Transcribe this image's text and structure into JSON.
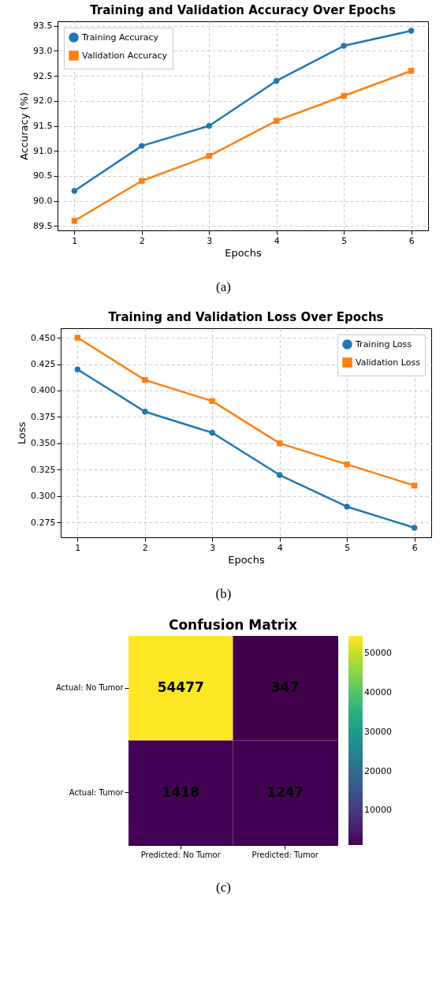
{
  "chart_data": [
    {
      "type": "line",
      "title": "Training and Validation Accuracy Over Epochs",
      "xlabel": "Epochs",
      "ylabel": "Accuracy (%)",
      "x": [
        1,
        2,
        3,
        4,
        5,
        6
      ],
      "series": [
        {
          "name": "Training Accuracy",
          "color": "#1f77b4",
          "marker": "circle",
          "values": [
            90.2,
            91.1,
            91.5,
            92.4,
            93.1,
            93.4
          ]
        },
        {
          "name": "Validation Accuracy",
          "color": "#ff7f0e",
          "marker": "square",
          "values": [
            89.6,
            90.4,
            90.9,
            91.6,
            92.1,
            92.6
          ]
        }
      ],
      "xlim": [
        0.75,
        6.25
      ],
      "xticks": [
        1,
        2,
        3,
        4,
        5,
        6
      ],
      "ylim": [
        89.41,
        93.59
      ],
      "yticks": [
        89.5,
        {
          "value": 90,
          "label": "90.0"
        },
        90.5,
        {
          "value": 91,
          "label": "91.0"
        },
        91.5,
        {
          "value": 92,
          "label": "92.0"
        },
        92.5,
        {
          "value": 93,
          "label": "93.0"
        },
        93.5
      ],
      "grid": true,
      "legend": "top left",
      "line_style": "solid",
      "annotations": [
        "(a)"
      ]
    },
    {
      "type": "line",
      "title": "Training and Validation Loss Over Epochs",
      "xlabel": "Epochs",
      "ylabel": "Loss",
      "x": [
        1,
        2,
        3,
        4,
        5,
        6
      ],
      "series": [
        {
          "name": "Training Loss",
          "color": "#1f77b4",
          "marker": "circle",
          "values": [
            0.42,
            0.38,
            0.36,
            0.32,
            0.29,
            0.27
          ]
        },
        {
          "name": "Validation Loss",
          "color": "#ff7f0e",
          "marker": "square",
          "values": [
            0.45,
            0.41,
            0.39,
            0.35,
            0.33,
            0.31
          ]
        }
      ],
      "xlim": [
        0.75,
        6.25
      ],
      "xticks": [
        1,
        2,
        3,
        4,
        5,
        6
      ],
      "ylim": [
        0.261,
        0.459
      ],
      "yticks": [
        0.275,
        {
          "value": 0.3,
          "label": "0.300"
        },
        0.325,
        {
          "value": 0.35,
          "label": "0.350"
        },
        0.375,
        {
          "value": 0.4,
          "label": "0.400"
        },
        0.425,
        {
          "value": 0.45,
          "label": "0.450"
        }
      ],
      "grid": true,
      "legend": "top right",
      "line_style": "solid",
      "annotations": [
        "(b)"
      ]
    },
    {
      "type": "heatmap",
      "title": "Confusion Matrix",
      "categories": [
        "Predicted: No Tumor",
        "Predicted: Tumor"
      ],
      "y_categories": [
        "Actual: No Tumor",
        "Actual: Tumor"
      ],
      "cells": [
        [
          54477,
          347
        ],
        [
          1418,
          1247
        ]
      ],
      "clim": [
        1247,
        54477
      ],
      "cticks": [
        10000,
        20000,
        30000,
        40000,
        50000
      ],
      "data_labels": true,
      "annotations": [
        "(c)"
      ]
    }
  ]
}
